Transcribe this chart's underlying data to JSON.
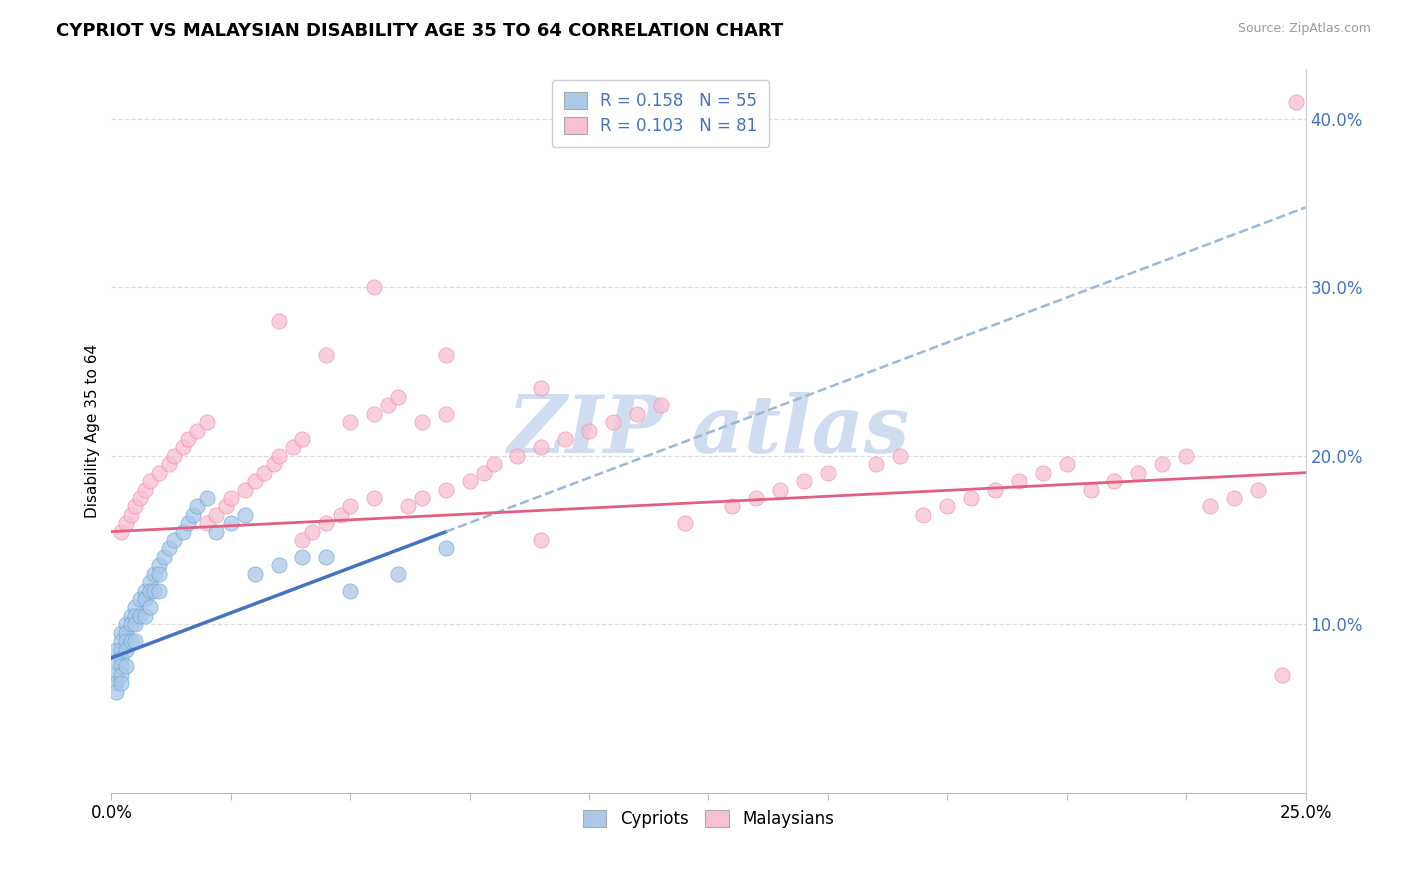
{
  "title": "CYPRIOT VS MALAYSIAN DISABILITY AGE 35 TO 64 CORRELATION CHART",
  "source": "Source: ZipAtlas.com",
  "ylabel": "Disability Age 35 to 64",
  "xlim": [
    0.0,
    0.25
  ],
  "ylim": [
    0.0,
    0.43
  ],
  "yticks_right": [
    0.1,
    0.2,
    0.3,
    0.4
  ],
  "ytick_right_labels": [
    "10.0%",
    "20.0%",
    "30.0%",
    "40.0%"
  ],
  "cypriot_R": 0.158,
  "cypriot_N": 55,
  "malaysian_R": 0.103,
  "malaysian_N": 81,
  "cypriot_fill_color": "#aac8e8",
  "cypriot_edge_color": "#5a9fd4",
  "malaysian_fill_color": "#f8c0d0",
  "malaysian_edge_color": "#f080a0",
  "cypriot_line_color": "#4472c4",
  "cypriot_dash_color": "#9ab8d8",
  "malaysian_line_color": "#e06080",
  "legend_color": "#4472c4",
  "watermark_color": "#c8d8ee",
  "cypriot_x": [
    0.001,
    0.001,
    0.001,
    0.001,
    0.001,
    0.002,
    0.002,
    0.002,
    0.002,
    0.002,
    0.002,
    0.002,
    0.003,
    0.003,
    0.003,
    0.003,
    0.003,
    0.004,
    0.004,
    0.004,
    0.005,
    0.005,
    0.005,
    0.005,
    0.006,
    0.006,
    0.007,
    0.007,
    0.007,
    0.008,
    0.008,
    0.008,
    0.009,
    0.009,
    0.01,
    0.01,
    0.01,
    0.011,
    0.012,
    0.013,
    0.015,
    0.016,
    0.017,
    0.018,
    0.02,
    0.022,
    0.025,
    0.028,
    0.03,
    0.035,
    0.04,
    0.045,
    0.05,
    0.06,
    0.07
  ],
  "cypriot_y": [
    0.085,
    0.078,
    0.07,
    0.065,
    0.06,
    0.095,
    0.09,
    0.085,
    0.08,
    0.075,
    0.07,
    0.065,
    0.1,
    0.095,
    0.09,
    0.085,
    0.075,
    0.105,
    0.1,
    0.09,
    0.11,
    0.105,
    0.1,
    0.09,
    0.115,
    0.105,
    0.12,
    0.115,
    0.105,
    0.125,
    0.12,
    0.11,
    0.13,
    0.12,
    0.135,
    0.13,
    0.12,
    0.14,
    0.145,
    0.15,
    0.155,
    0.16,
    0.165,
    0.17,
    0.175,
    0.155,
    0.16,
    0.165,
    0.13,
    0.135,
    0.14,
    0.14,
    0.12,
    0.13,
    0.145
  ],
  "malaysian_x": [
    0.002,
    0.003,
    0.004,
    0.005,
    0.006,
    0.007,
    0.008,
    0.01,
    0.012,
    0.013,
    0.015,
    0.016,
    0.018,
    0.02,
    0.02,
    0.022,
    0.024,
    0.025,
    0.028,
    0.03,
    0.032,
    0.034,
    0.035,
    0.038,
    0.04,
    0.04,
    0.042,
    0.045,
    0.048,
    0.05,
    0.05,
    0.055,
    0.055,
    0.058,
    0.06,
    0.062,
    0.065,
    0.065,
    0.07,
    0.07,
    0.075,
    0.078,
    0.08,
    0.085,
    0.09,
    0.09,
    0.095,
    0.1,
    0.105,
    0.11,
    0.115,
    0.12,
    0.13,
    0.135,
    0.14,
    0.145,
    0.15,
    0.16,
    0.165,
    0.17,
    0.175,
    0.18,
    0.185,
    0.19,
    0.195,
    0.2,
    0.205,
    0.21,
    0.215,
    0.22,
    0.225,
    0.23,
    0.235,
    0.24,
    0.245,
    0.248,
    0.035,
    0.045,
    0.055,
    0.07,
    0.09
  ],
  "malaysian_y": [
    0.155,
    0.16,
    0.165,
    0.17,
    0.175,
    0.18,
    0.185,
    0.19,
    0.195,
    0.2,
    0.205,
    0.21,
    0.215,
    0.22,
    0.16,
    0.165,
    0.17,
    0.175,
    0.18,
    0.185,
    0.19,
    0.195,
    0.2,
    0.205,
    0.21,
    0.15,
    0.155,
    0.16,
    0.165,
    0.17,
    0.22,
    0.175,
    0.225,
    0.23,
    0.235,
    0.17,
    0.175,
    0.22,
    0.18,
    0.225,
    0.185,
    0.19,
    0.195,
    0.2,
    0.205,
    0.15,
    0.21,
    0.215,
    0.22,
    0.225,
    0.23,
    0.16,
    0.17,
    0.175,
    0.18,
    0.185,
    0.19,
    0.195,
    0.2,
    0.165,
    0.17,
    0.175,
    0.18,
    0.185,
    0.19,
    0.195,
    0.18,
    0.185,
    0.19,
    0.195,
    0.2,
    0.17,
    0.175,
    0.18,
    0.07,
    0.41,
    0.28,
    0.26,
    0.3,
    0.26,
    0.24
  ]
}
